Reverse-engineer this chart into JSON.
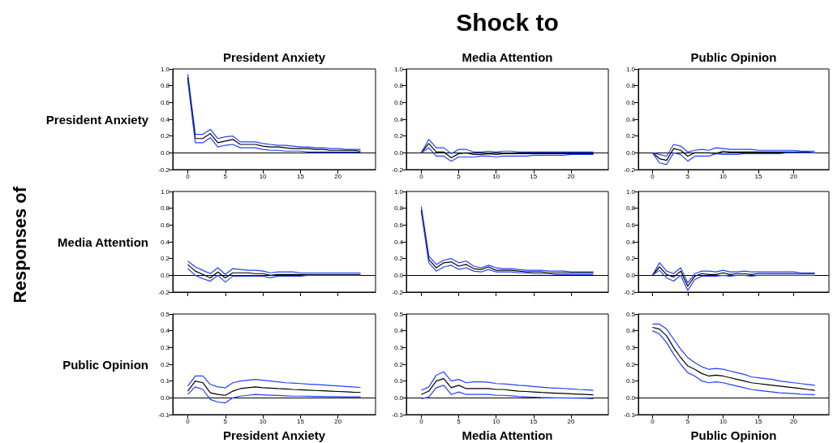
{
  "chart_data": [
    {
      "type": "line",
      "title": "President Anxiety",
      "ylabel": "President Anxiety",
      "x": [
        0,
        1,
        2,
        3,
        4,
        5,
        6,
        7,
        8,
        9,
        10,
        11,
        12,
        13,
        14,
        15,
        16,
        17,
        18,
        19,
        20,
        21,
        22,
        23
      ],
      "xlim": [
        -2,
        25
      ],
      "xticks": [
        0,
        5,
        10,
        15,
        20
      ],
      "ylim": [
        -0.2,
        1.0
      ],
      "yticks": [
        {
          "value": -0.2,
          "label": "-0.2"
        },
        {
          "value": 0,
          "label": "0.0"
        },
        {
          "value": 0.2,
          "label": "0.2"
        },
        {
          "value": 0.4,
          "label": "0.4"
        },
        {
          "value": 0.6,
          "label": "0.6"
        },
        {
          "value": 0.8,
          "label": "0.8"
        },
        {
          "value": 1.0,
          "label": "1.0"
        }
      ],
      "ref_lines": [
        {
          "axis": "y",
          "value": 0,
          "color": "#000000"
        }
      ],
      "series": [
        {
          "color": "#2040ff",
          "values": [
            0.94,
            0.22,
            0.22,
            0.28,
            0.17,
            0.19,
            0.2,
            0.13,
            0.13,
            0.13,
            0.11,
            0.1,
            0.09,
            0.09,
            0.08,
            0.07,
            0.07,
            0.06,
            0.06,
            0.05,
            0.05,
            0.04,
            0.04,
            0.04
          ]
        },
        {
          "color": "#000000",
          "values": [
            0.9,
            0.17,
            0.17,
            0.23,
            0.12,
            0.14,
            0.16,
            0.1,
            0.1,
            0.1,
            0.08,
            0.07,
            0.07,
            0.06,
            0.05,
            0.05,
            0.05,
            0.04,
            0.04,
            0.03,
            0.03,
            0.03,
            0.03,
            0.02
          ]
        },
        {
          "color": "#2040ff",
          "values": [
            0.86,
            0.12,
            0.12,
            0.18,
            0.07,
            0.09,
            0.1,
            0.06,
            0.06,
            0.06,
            0.04,
            0.03,
            0.03,
            0.02,
            0.02,
            0.02,
            0.01,
            0.01,
            0.01,
            0.01,
            0.01,
            0.01,
            0.01,
            0.01
          ]
        }
      ]
    },
    {
      "type": "line",
      "title": "Media Attention",
      "annotations": [
        "Shock to"
      ],
      "x": [
        0,
        1,
        2,
        3,
        4,
        5,
        6,
        7,
        8,
        9,
        10,
        11,
        12,
        13,
        14,
        15,
        16,
        17,
        18,
        19,
        20,
        21,
        22,
        23
      ],
      "xlim": [
        -2,
        25
      ],
      "xticks": [
        0,
        5,
        10,
        15,
        20
      ],
      "ylim": [
        -0.2,
        1.0
      ],
      "yticks": [
        {
          "value": -0.2,
          "label": "-0.2"
        },
        {
          "value": 0,
          "label": "0.0"
        },
        {
          "value": 0.2,
          "label": "0.2"
        },
        {
          "value": 0.4,
          "label": "0.4"
        },
        {
          "value": 0.6,
          "label": "0.6"
        },
        {
          "value": 0.8,
          "label": "0.8"
        },
        {
          "value": 1.0,
          "label": "1.0"
        }
      ],
      "ref_lines": [
        {
          "axis": "y",
          "value": 0,
          "color": "#000000"
        }
      ],
      "series": [
        {
          "color": "#2040ff",
          "values": [
            0,
            0.16,
            0.06,
            0.06,
            -0.01,
            0.04,
            0.04,
            0.01,
            0.01,
            0.02,
            0.01,
            0.02,
            0.02,
            0.01,
            0.01,
            0.01,
            0.01,
            0.01,
            0.01,
            0.01,
            0.01,
            0.01,
            0.01,
            0.01
          ]
        },
        {
          "color": "#000000",
          "values": [
            0,
            0.11,
            0.01,
            0.01,
            -0.06,
            -0.01,
            0,
            -0.02,
            -0.02,
            -0.01,
            -0.02,
            -0.01,
            -0.01,
            -0.01,
            -0.01,
            -0.01,
            -0.01,
            -0.01,
            -0.01,
            -0.01,
            -0.01,
            -0.01,
            -0.01,
            -0.01
          ]
        },
        {
          "color": "#2040ff",
          "values": [
            0,
            0.06,
            -0.04,
            -0.04,
            -0.1,
            -0.05,
            -0.05,
            -0.05,
            -0.04,
            -0.04,
            -0.05,
            -0.04,
            -0.04,
            -0.04,
            -0.04,
            -0.03,
            -0.03,
            -0.03,
            -0.03,
            -0.03,
            -0.02,
            -0.02,
            -0.02,
            -0.02
          ]
        }
      ]
    },
    {
      "type": "line",
      "title": "Public Opinion",
      "x": [
        0,
        1,
        2,
        3,
        4,
        5,
        6,
        7,
        8,
        9,
        10,
        11,
        12,
        13,
        14,
        15,
        16,
        17,
        18,
        19,
        20,
        21,
        22,
        23
      ],
      "xlim": [
        -2,
        25
      ],
      "xticks": [
        0,
        5,
        10,
        15,
        20
      ],
      "ylim": [
        -0.2,
        1.0
      ],
      "yticks": [
        {
          "value": -0.2,
          "label": "-0.2"
        },
        {
          "value": 0,
          "label": "0.0"
        },
        {
          "value": 0.2,
          "label": "0.2"
        },
        {
          "value": 0.4,
          "label": "0.4"
        },
        {
          "value": 0.6,
          "label": "0.6"
        },
        {
          "value": 0.8,
          "label": "0.8"
        },
        {
          "value": 1.0,
          "label": "1.0"
        }
      ],
      "ref_lines": [
        {
          "axis": "y",
          "value": 0,
          "color": "#000000"
        }
      ],
      "series": [
        {
          "color": "#2040ff",
          "values": [
            0,
            -0.02,
            -0.04,
            0.1,
            0.08,
            0.01,
            0.03,
            0.04,
            0.03,
            0.06,
            0.05,
            0.04,
            0.04,
            0.04,
            0.04,
            0.03,
            0.03,
            0.03,
            0.03,
            0.03,
            0.03,
            0.02,
            0.02,
            0.02
          ]
        },
        {
          "color": "#000000",
          "values": [
            0,
            -0.07,
            -0.09,
            0.05,
            0.03,
            -0.04,
            0,
            0,
            0,
            -0.01,
            0.02,
            0.01,
            0.01,
            0.01,
            0.01,
            0.01,
            0.01,
            0.01,
            0.01,
            0.01,
            0.01,
            0.01,
            0.01,
            0
          ]
        },
        {
          "color": "#2040ff",
          "values": [
            0,
            -0.12,
            -0.14,
            0,
            -0.02,
            -0.1,
            -0.04,
            -0.04,
            -0.04,
            -0.01,
            -0.02,
            -0.02,
            -0.02,
            -0.01,
            -0.01,
            -0.01,
            -0.01,
            -0.01,
            -0.01,
            0,
            0,
            0,
            0,
            0
          ]
        }
      ]
    },
    {
      "type": "line",
      "ylabel": "Media Attention",
      "annotations": [
        "Responses of"
      ],
      "tick_labels": "y",
      "x": [
        0,
        1,
        2,
        3,
        4,
        5,
        6,
        7,
        8,
        9,
        10,
        11,
        12,
        13,
        14,
        15,
        16,
        17,
        18,
        19,
        20,
        21,
        22,
        23
      ],
      "xlim": [
        -2,
        25
      ],
      "xticks": [
        0,
        5,
        10,
        15,
        20
      ],
      "ylim": [
        -0.2,
        1.0
      ],
      "yticks": [
        {
          "value": -0.2,
          "label": "-0.2"
        },
        {
          "value": 0,
          "label": "0.0"
        },
        {
          "value": 0.2,
          "label": "0.2"
        },
        {
          "value": 0.4,
          "label": "0.4"
        },
        {
          "value": 0.6,
          "label": "0.6"
        },
        {
          "value": 0.8,
          "label": "0.8"
        },
        {
          "value": 1.0,
          "label": "1.0"
        }
      ],
      "ref_lines": [
        {
          "axis": "y",
          "value": 0,
          "color": "#000000"
        }
      ],
      "series": [
        {
          "color": "#2040ff",
          "values": [
            0.17,
            0.1,
            0.06,
            0.02,
            0.09,
            0.01,
            0.08,
            0.07,
            0.06,
            0.06,
            0.05,
            0.03,
            0.04,
            0.04,
            0.04,
            0.03,
            0.03,
            0.03,
            0.03,
            0.03,
            0.03,
            0.03,
            0.03,
            0.03
          ]
        },
        {
          "color": "#000000",
          "values": [
            0.13,
            0.05,
            0.01,
            -0.03,
            0.04,
            -0.03,
            0.03,
            0.03,
            0.03,
            0.02,
            0.02,
            0,
            0.01,
            0.01,
            0.01,
            0.01,
            0.01,
            0.01,
            0.01,
            0.01,
            0.01,
            0.01,
            0.01,
            0.01
          ]
        },
        {
          "color": "#2040ff",
          "values": [
            0.08,
            0,
            -0.04,
            -0.07,
            0,
            -0.08,
            -0.01,
            -0.01,
            -0.01,
            -0.01,
            -0.01,
            -0.03,
            -0.01,
            -0.01,
            -0.01,
            -0.01,
            0,
            0,
            0,
            0,
            0,
            0,
            0,
            0
          ]
        }
      ]
    },
    {
      "type": "line",
      "tick_labels": "y",
      "x": [
        0,
        1,
        2,
        3,
        4,
        5,
        6,
        7,
        8,
        9,
        10,
        11,
        12,
        13,
        14,
        15,
        16,
        17,
        18,
        19,
        20,
        21,
        22,
        23
      ],
      "xlim": [
        -2,
        25
      ],
      "xticks": [
        0,
        5,
        10,
        15,
        20
      ],
      "ylim": [
        -0.2,
        1.0
      ],
      "yticks": [
        {
          "value": -0.2,
          "label": "-0.2"
        },
        {
          "value": 0,
          "label": "0.0"
        },
        {
          "value": 0.2,
          "label": "0.2"
        },
        {
          "value": 0.4,
          "label": "0.4"
        },
        {
          "value": 0.6,
          "label": "0.6"
        },
        {
          "value": 0.8,
          "label": "0.8"
        },
        {
          "value": 1.0,
          "label": "1.0"
        }
      ],
      "ref_lines": [
        {
          "axis": "y",
          "value": 0,
          "color": "#000000"
        }
      ],
      "series": [
        {
          "color": "#2040ff",
          "values": [
            0.82,
            0.23,
            0.13,
            0.18,
            0.2,
            0.15,
            0.17,
            0.11,
            0.09,
            0.12,
            0.09,
            0.08,
            0.08,
            0.07,
            0.06,
            0.06,
            0.06,
            0.05,
            0.05,
            0.05,
            0.04,
            0.04,
            0.04,
            0.04
          ]
        },
        {
          "color": "#000000",
          "values": [
            0.78,
            0.19,
            0.09,
            0.15,
            0.16,
            0.11,
            0.13,
            0.08,
            0.07,
            0.1,
            0.06,
            0.06,
            0.06,
            0.05,
            0.04,
            0.04,
            0.04,
            0.03,
            0.03,
            0.03,
            0.03,
            0.03,
            0.03,
            0.03
          ]
        },
        {
          "color": "#2040ff",
          "values": [
            0.76,
            0.15,
            0.05,
            0.1,
            0.12,
            0.07,
            0.09,
            0.05,
            0.04,
            0.07,
            0.04,
            0.04,
            0.04,
            0.03,
            0.03,
            0.02,
            0.02,
            0.02,
            0.01,
            0.01,
            0.01,
            0.01,
            0.01,
            0.01
          ]
        }
      ]
    },
    {
      "type": "line",
      "tick_labels": "y",
      "x": [
        0,
        1,
        2,
        3,
        4,
        5,
        6,
        7,
        8,
        9,
        10,
        11,
        12,
        13,
        14,
        15,
        16,
        17,
        18,
        19,
        20,
        21,
        22,
        23
      ],
      "xlim": [
        -2,
        25
      ],
      "xticks": [
        0,
        5,
        10,
        15,
        20
      ],
      "ylim": [
        -0.2,
        1.0
      ],
      "yticks": [
        {
          "value": -0.2,
          "label": "-0.2"
        },
        {
          "value": 0,
          "label": "0.0"
        },
        {
          "value": 0.2,
          "label": "0.2"
        },
        {
          "value": 0.4,
          "label": "0.4"
        },
        {
          "value": 0.6,
          "label": "0.6"
        },
        {
          "value": 0.8,
          "label": "0.8"
        },
        {
          "value": 1.0,
          "label": "1.0"
        }
      ],
      "ref_lines": [
        {
          "axis": "y",
          "value": 0,
          "color": "#000000"
        }
      ],
      "series": [
        {
          "color": "#2040ff",
          "values": [
            0,
            0.15,
            0.05,
            0.02,
            0.09,
            -0.09,
            0.02,
            0.05,
            0.05,
            0.04,
            0.06,
            0.04,
            0.04,
            0.05,
            0.04,
            0.04,
            0.04,
            0.04,
            0.04,
            0.04,
            0.04,
            0.03,
            0.03,
            0.03
          ]
        },
        {
          "color": "#000000",
          "values": [
            0,
            0.1,
            0.01,
            -0.02,
            0.05,
            -0.13,
            -0.01,
            0.02,
            0.01,
            0.01,
            0.03,
            0.01,
            0.02,
            0.02,
            0.01,
            0.02,
            0.02,
            0.02,
            0.02,
            0.02,
            0.02,
            0.02,
            0.02,
            0.02
          ]
        },
        {
          "color": "#2040ff",
          "values": [
            0,
            0.06,
            -0.03,
            -0.07,
            0,
            -0.18,
            -0.05,
            -0.01,
            -0.01,
            -0.01,
            0,
            -0.01,
            0,
            0,
            -0.01,
            0,
            0,
            0,
            0,
            0,
            0,
            0,
            0,
            0
          ]
        }
      ]
    },
    {
      "type": "line",
      "ylabel": "Public Opinion",
      "xlabel": "President Anxiety",
      "x": [
        0,
        1,
        2,
        3,
        4,
        5,
        6,
        7,
        8,
        9,
        10,
        11,
        12,
        13,
        14,
        15,
        16,
        17,
        18,
        19,
        20,
        21,
        22,
        23
      ],
      "xlim": [
        -2,
        25
      ],
      "xticks": [
        0,
        5,
        10,
        15,
        20
      ],
      "ylim": [
        -0.1,
        0.5
      ],
      "yticks": [
        {
          "value": -0.1,
          "label": "-0.1"
        },
        {
          "value": 0,
          "label": "0.0"
        },
        {
          "value": 0.1,
          "label": "0.1"
        },
        {
          "value": 0.2,
          "label": "0.2"
        },
        {
          "value": 0.3,
          "label": "0.3"
        },
        {
          "value": 0.4,
          "label": "0.4"
        },
        {
          "value": 0.5,
          "label": "0.5"
        }
      ],
      "ref_lines": [
        {
          "axis": "y",
          "value": 0,
          "color": "#000000"
        }
      ],
      "series": [
        {
          "color": "#2040ff",
          "values": [
            0.07,
            0.13,
            0.13,
            0.08,
            0.065,
            0.06,
            0.09,
            0.1,
            0.105,
            0.11,
            0.105,
            0.1,
            0.095,
            0.09,
            0.088,
            0.085,
            0.082,
            0.08,
            0.077,
            0.074,
            0.071,
            0.068,
            0.065,
            0.062
          ]
        },
        {
          "color": "#000000",
          "values": [
            0.04,
            0.1,
            0.09,
            0.03,
            0.02,
            0.015,
            0.04,
            0.055,
            0.06,
            0.065,
            0.06,
            0.058,
            0.055,
            0.053,
            0.05,
            0.048,
            0.046,
            0.044,
            0.042,
            0.04,
            0.038,
            0.036,
            0.034,
            0.033
          ]
        },
        {
          "color": "#2040ff",
          "values": [
            0.02,
            0.065,
            0.05,
            -0.01,
            -0.025,
            -0.03,
            0,
            0.01,
            0.015,
            0.02,
            0.018,
            0.016,
            0.014,
            0.012,
            0.01,
            0.01,
            0.009,
            0.008,
            0.008,
            0.007,
            0.007,
            0.006,
            0.006,
            0.006
          ]
        }
      ]
    },
    {
      "type": "line",
      "xlabel": "Media Attention",
      "x": [
        0,
        1,
        2,
        3,
        4,
        5,
        6,
        7,
        8,
        9,
        10,
        11,
        12,
        13,
        14,
        15,
        16,
        17,
        18,
        19,
        20,
        21,
        22,
        23
      ],
      "xlim": [
        -2,
        25
      ],
      "xticks": [
        0,
        5,
        10,
        15,
        20
      ],
      "ylim": [
        -0.1,
        0.5
      ],
      "yticks": [
        {
          "value": -0.1,
          "label": "-0.1"
        },
        {
          "value": 0,
          "label": "0.0"
        },
        {
          "value": 0.1,
          "label": "0.1"
        },
        {
          "value": 0.2,
          "label": "0.2"
        },
        {
          "value": 0.3,
          "label": "0.3"
        },
        {
          "value": 0.4,
          "label": "0.4"
        },
        {
          "value": 0.5,
          "label": "0.5"
        }
      ],
      "ref_lines": [
        {
          "axis": "y",
          "value": 0,
          "color": "#000000"
        }
      ],
      "series": [
        {
          "color": "#2040ff",
          "values": [
            0.045,
            0.065,
            0.135,
            0.155,
            0.1,
            0.11,
            0.09,
            0.095,
            0.095,
            0.093,
            0.085,
            0.083,
            0.08,
            0.075,
            0.072,
            0.068,
            0.064,
            0.06,
            0.058,
            0.056,
            0.053,
            0.05,
            0.048,
            0.045
          ]
        },
        {
          "color": "#000000",
          "values": [
            0.02,
            0.04,
            0.1,
            0.115,
            0.06,
            0.075,
            0.055,
            0.055,
            0.055,
            0.055,
            0.05,
            0.05,
            0.045,
            0.04,
            0.038,
            0.035,
            0.032,
            0.03,
            0.028,
            0.026,
            0.024,
            0.022,
            0.02,
            0.018
          ]
        },
        {
          "color": "#2040ff",
          "values": [
            -0.005,
            0.005,
            0.06,
            0.075,
            0.02,
            0.035,
            0.02,
            0.02,
            0.02,
            0.02,
            0.015,
            0.015,
            0.012,
            0.008,
            0.006,
            0.004,
            0.002,
            0.001,
            0,
            0,
            -0.001,
            -0.002,
            -0.003,
            -0.005
          ]
        }
      ]
    },
    {
      "type": "line",
      "xlabel": "Public Opinion",
      "x": [
        0,
        1,
        2,
        3,
        4,
        5,
        6,
        7,
        8,
        9,
        10,
        11,
        12,
        13,
        14,
        15,
        16,
        17,
        18,
        19,
        20,
        21,
        22,
        23
      ],
      "xlim": [
        -2,
        25
      ],
      "xticks": [
        0,
        5,
        10,
        15,
        20
      ],
      "ylim": [
        -0.1,
        0.5
      ],
      "yticks": [
        {
          "value": -0.1,
          "label": "-0.1"
        },
        {
          "value": 0,
          "label": "0.0"
        },
        {
          "value": 0.1,
          "label": "0.1"
        },
        {
          "value": 0.2,
          "label": "0.2"
        },
        {
          "value": 0.3,
          "label": "0.3"
        },
        {
          "value": 0.4,
          "label": "0.4"
        },
        {
          "value": 0.5,
          "label": "0.5"
        }
      ],
      "ref_lines": [
        {
          "axis": "y",
          "value": 0,
          "color": "#000000"
        }
      ],
      "series": [
        {
          "color": "#2040ff",
          "values": [
            0.44,
            0.44,
            0.41,
            0.35,
            0.29,
            0.24,
            0.21,
            0.185,
            0.17,
            0.175,
            0.17,
            0.16,
            0.15,
            0.14,
            0.125,
            0.12,
            0.115,
            0.11,
            0.1,
            0.095,
            0.09,
            0.085,
            0.08,
            0.075
          ]
        },
        {
          "color": "#000000",
          "values": [
            0.42,
            0.41,
            0.37,
            0.3,
            0.24,
            0.19,
            0.17,
            0.145,
            0.13,
            0.135,
            0.13,
            0.12,
            0.11,
            0.1,
            0.09,
            0.085,
            0.08,
            0.075,
            0.07,
            0.065,
            0.06,
            0.055,
            0.05,
            0.045
          ]
        },
        {
          "color": "#2040ff",
          "values": [
            0.4,
            0.38,
            0.33,
            0.26,
            0.2,
            0.15,
            0.13,
            0.1,
            0.09,
            0.095,
            0.09,
            0.08,
            0.07,
            0.06,
            0.05,
            0.045,
            0.04,
            0.035,
            0.03,
            0.028,
            0.025,
            0.022,
            0.02,
            0.018
          ]
        }
      ]
    }
  ]
}
